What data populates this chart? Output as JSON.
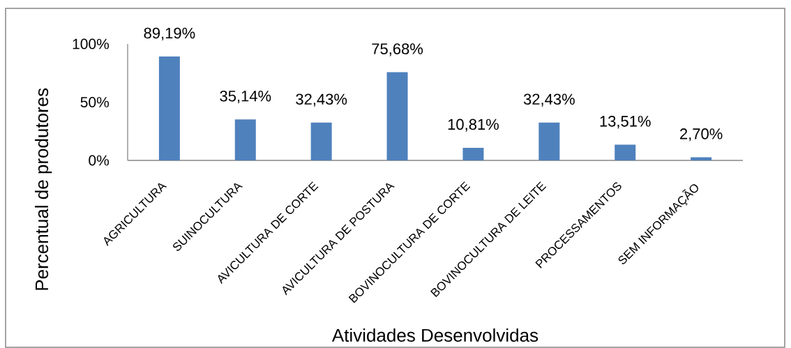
{
  "chart_data": {
    "type": "bar",
    "xlabel": "Atividades Desenvolvidas",
    "ylabel": "Percentual de produtores",
    "categories": [
      "AGRICULTURA",
      "SUINOCULTURA",
      "AVICULTURA DE CORTE",
      "AVICULTURA DE POSTURA",
      "BOVINOCULTURA DE CORTE",
      "BOVINOCULTURA DE LEITE",
      "PROCESSAMENTOS",
      "SEM INFORMAÇÃO"
    ],
    "values": [
      89.19,
      35.14,
      32.43,
      75.68,
      10.81,
      32.43,
      13.51,
      2.7
    ],
    "value_labels": [
      "89,19%",
      "35,14%",
      "32,43%",
      "75,68%",
      "10,81%",
      "32,43%",
      "13,51%",
      "2,70%"
    ],
    "color": "#4f81bd",
    "ylim": [
      0,
      100
    ],
    "yticks": [
      {
        "value": 0,
        "label": "0%"
      },
      {
        "value": 50,
        "label": "50%"
      },
      {
        "value": 100,
        "label": "100%"
      }
    ]
  }
}
